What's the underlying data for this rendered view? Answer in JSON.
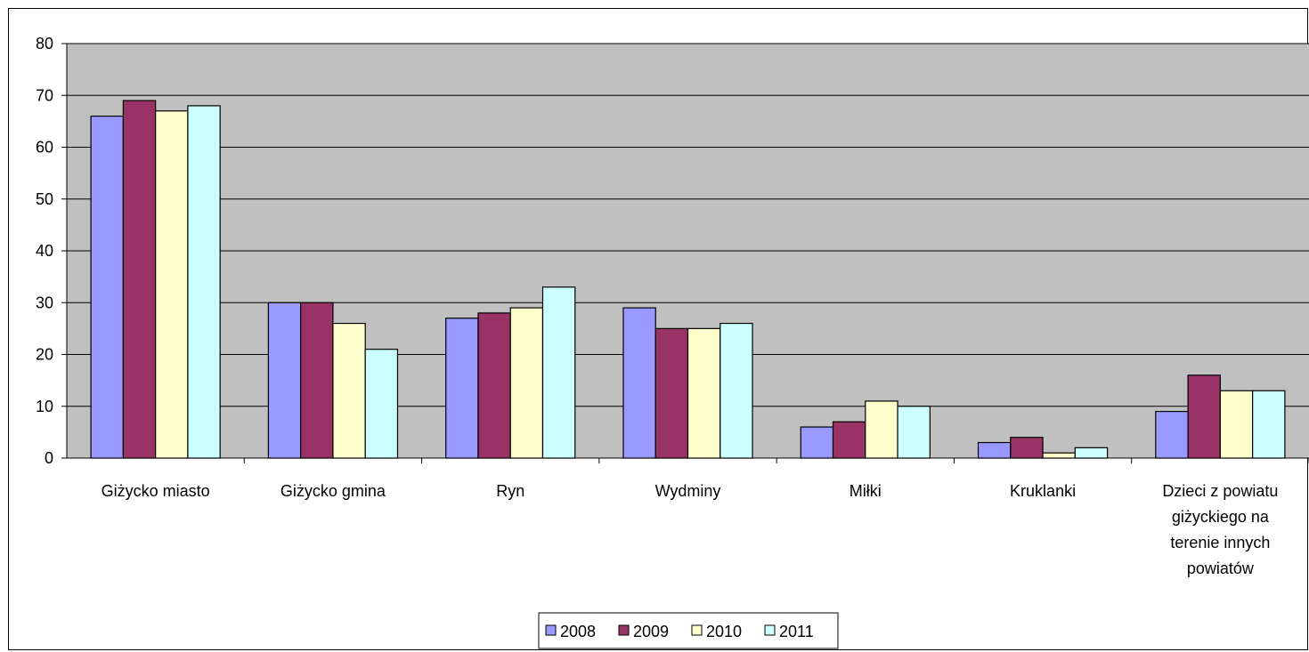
{
  "chart_data": {
    "type": "bar",
    "categories": [
      "Giżycko miasto",
      "Giżycko gmina",
      "Ryn",
      "Wydminy",
      "Miłki",
      "Kruklanki",
      "Dzieci z powiatu giżyckiego na terenie innych powiatów"
    ],
    "category_lines": [
      [
        "Giżycko miasto"
      ],
      [
        "Giżycko gmina"
      ],
      [
        "Ryn"
      ],
      [
        "Wydminy"
      ],
      [
        "Miłki"
      ],
      [
        "Kruklanki"
      ],
      [
        "Dzieci z powiatu",
        "giżyckiego na",
        "terenie innych",
        "powiatów"
      ]
    ],
    "series": [
      {
        "name": "2008",
        "color": "#9999ff",
        "values": [
          66,
          30,
          27,
          29,
          6,
          3,
          9
        ]
      },
      {
        "name": "2009",
        "color": "#993366",
        "values": [
          69,
          30,
          28,
          25,
          7,
          4,
          16
        ]
      },
      {
        "name": "2010",
        "color": "#ffffcc",
        "values": [
          67,
          26,
          29,
          25,
          11,
          1,
          13
        ]
      },
      {
        "name": "2011",
        "color": "#ccffff",
        "values": [
          68,
          21,
          33,
          26,
          10,
          2,
          13
        ]
      }
    ],
    "yticks": [
      "0",
      "10",
      "20",
      "30",
      "40",
      "50",
      "60",
      "70",
      "80"
    ],
    "ylim": [
      0,
      80
    ],
    "grid": true,
    "plot_background": "#c0c0c0",
    "legend_position": "bottom",
    "title": "",
    "xlabel": "",
    "ylabel": ""
  }
}
